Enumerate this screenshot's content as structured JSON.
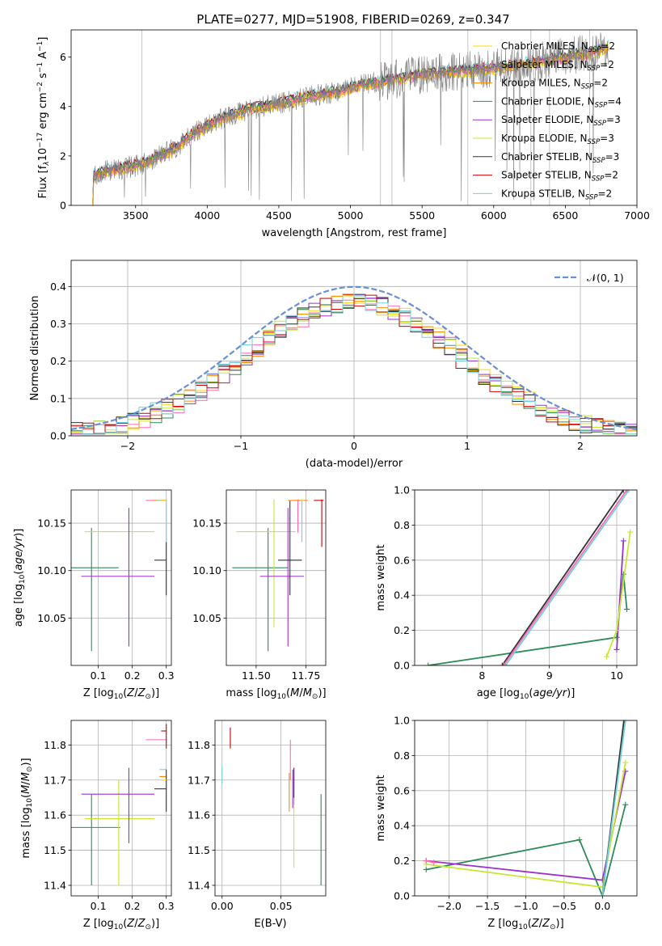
{
  "figure": {
    "title": "PLATE=0277, MJD=51908, FIBERID=0269, z=0.347"
  },
  "models": [
    {
      "key": "cm",
      "label": "Chabrier MILES, N",
      "n": "=2",
      "color": "#FFD700"
    },
    {
      "key": "sm",
      "label": "Salpeter MILES, N",
      "n": "=2",
      "color": "#FF69B4"
    },
    {
      "key": "km",
      "label": "Kroupa MILES, N",
      "n": "=2",
      "color": "#FF8C00"
    },
    {
      "key": "ce",
      "label": "Chabrier ELODIE, N",
      "n": "=4",
      "color": "#2E8B57"
    },
    {
      "key": "se",
      "label": "Salpeter ELODIE, N",
      "n": "=3",
      "color": "#9932CC"
    },
    {
      "key": "ke",
      "label": "Kroupa ELODIE, N",
      "n": "=3",
      "color": "#C8E632"
    },
    {
      "key": "cs",
      "label": "Chabrier STELIB, N",
      "n": "=3",
      "color": "#333333"
    },
    {
      "key": "ss",
      "label": "Salpeter STELIB, N",
      "n": "=2",
      "color": "#CC0000"
    },
    {
      "key": "ks",
      "label": "Kroupa STELIB, N",
      "n": "=2",
      "color": "#6FD0E0"
    }
  ],
  "legend_sub": "SSP",
  "norm_legend": "𝒩(0, 1)",
  "chart_data": [
    {
      "id": "spectrum",
      "type": "line",
      "title": "PLATE=0277, MJD=51908, FIBERID=0269, z=0.347",
      "xlabel": "wavelength [Angstrom, rest frame]",
      "ylabel_parts": [
        "Flux [f",
        "λ",
        "10",
        "−17",
        " erg cm",
        "−2",
        " s",
        "−1",
        " A",
        "−1",
        "]"
      ],
      "xlim": [
        3050,
        7000
      ],
      "ylim": [
        0,
        7.1
      ],
      "xticks": [
        3500,
        4000,
        4500,
        5000,
        5500,
        6000,
        6500,
        7000
      ],
      "yticks": [
        0,
        2,
        4,
        6
      ],
      "continuum": [
        [
          3200,
          0.0
        ],
        [
          3205,
          1.2
        ],
        [
          3300,
          1.4
        ],
        [
          3400,
          1.5
        ],
        [
          3500,
          1.6
        ],
        [
          3600,
          1.8
        ],
        [
          3700,
          2.1
        ],
        [
          3800,
          2.4
        ],
        [
          3900,
          2.9
        ],
        [
          4000,
          3.2
        ],
        [
          4100,
          3.5
        ],
        [
          4200,
          3.7
        ],
        [
          4300,
          3.9
        ],
        [
          4500,
          4.1
        ],
        [
          4700,
          4.4
        ],
        [
          4900,
          4.6
        ],
        [
          5100,
          4.9
        ],
        [
          5300,
          5.1
        ],
        [
          5500,
          5.3
        ],
        [
          5700,
          5.4
        ],
        [
          5900,
          5.5
        ],
        [
          6100,
          5.6
        ],
        [
          6300,
          5.8
        ],
        [
          6500,
          6.0
        ],
        [
          6700,
          6.2
        ],
        [
          6800,
          6.4
        ]
      ]
    },
    {
      "id": "residuals",
      "type": "line",
      "xlabel": "(data-model)/error",
      "ylabel": "Normed distribution",
      "xlim": [
        -2.5,
        2.5
      ],
      "ylim": [
        0,
        0.47
      ],
      "xticks": [
        -2,
        -1,
        0,
        1,
        2
      ],
      "yticks": [
        0.0,
        0.1,
        0.2,
        0.3,
        0.4
      ],
      "bin_width": 0.1,
      "series_name": "𝒩(0, 1)"
    },
    {
      "id": "age-Z",
      "type": "scatter",
      "xlabel": "Z [log",
      "ylabel": "age  [log",
      "xlim": [
        0.02,
        0.315
      ],
      "ylim": [
        10.0,
        10.185
      ],
      "xticks": [
        0.1,
        0.2,
        0.3
      ],
      "yticks": [
        10.05,
        10.1,
        10.15
      ],
      "points": [
        {
          "m": "ce",
          "x": 0.08,
          "y": 10.103,
          "xl": 0.0,
          "xh": 0.16,
          "yl": 10.015,
          "yh": 10.145
        },
        {
          "m": "ke",
          "x": 0.16,
          "y": 10.141,
          "xl": 0.06,
          "xh": 0.265,
          "yl": 10.141,
          "yh": 10.141
        },
        {
          "m": "se",
          "x": 0.19,
          "y": 10.094,
          "xl": 0.05,
          "xh": 0.265,
          "yl": 10.02,
          "yh": 10.166
        },
        {
          "m": "sm",
          "x": 0.27,
          "y": 10.174,
          "xl": 0.24,
          "xh": 0.3,
          "yl": 10.174,
          "yh": 10.174
        },
        {
          "m": "km",
          "x": 0.29,
          "y": 10.174,
          "xl": 0.26,
          "xh": 0.3,
          "yl": 10.174,
          "yh": 10.174
        },
        {
          "m": "ss",
          "x": 0.3,
          "y": 10.174,
          "xl": 0.28,
          "xh": 0.3,
          "yl": 10.174,
          "yh": 10.174
        },
        {
          "m": "ks",
          "x": 0.3,
          "y": 10.174,
          "xl": 0.27,
          "xh": 0.3,
          "yl": 10.13,
          "yh": 10.175
        },
        {
          "m": "cs",
          "x": 0.3,
          "y": 10.111,
          "xl": 0.265,
          "xh": 0.3,
          "yl": 10.074,
          "yh": 10.13
        },
        {
          "m": "cm",
          "x": 0.3,
          "y": 10.174,
          "xl": 0.28,
          "xh": 0.3,
          "yl": 10.174,
          "yh": 10.174
        }
      ]
    },
    {
      "id": "age-mass",
      "type": "scatter",
      "xlabel": "mass [log",
      "ylabel": "",
      "xlim": [
        11.35,
        11.85
      ],
      "ylim": [
        10.0,
        10.185
      ],
      "xticks": [
        11.5,
        11.75
      ],
      "yticks": [
        10.05,
        10.1,
        10.15
      ],
      "points": [
        {
          "m": "ce",
          "x": 11.56,
          "y": 10.103,
          "xl": 11.38,
          "xh": 11.66,
          "yl": 10.015,
          "yh": 10.145
        },
        {
          "m": "ke",
          "x": 11.59,
          "y": 10.141,
          "xl": 11.4,
          "xh": 11.7,
          "yl": 10.04,
          "yh": 10.175
        },
        {
          "m": "se",
          "x": 11.66,
          "y": 10.094,
          "xl": 11.52,
          "xh": 11.74,
          "yl": 10.02,
          "yh": 10.166
        },
        {
          "m": "cs",
          "x": 11.67,
          "y": 10.111,
          "xl": 11.61,
          "xh": 11.73,
          "yl": 10.074,
          "yh": 10.174
        },
        {
          "m": "sm",
          "x": 11.71,
          "y": 10.174,
          "xl": 11.7,
          "xh": 11.72,
          "yl": 10.14,
          "yh": 10.175
        },
        {
          "m": "ks",
          "x": 11.73,
          "y": 10.174,
          "xl": 11.72,
          "xh": 11.74,
          "yl": 10.13,
          "yh": 10.175
        },
        {
          "m": "km",
          "x": 11.73,
          "y": 10.174,
          "xl": 11.66,
          "xh": 11.76,
          "yl": 10.174,
          "yh": 10.174
        },
        {
          "m": "ss",
          "x": 11.83,
          "y": 10.174,
          "xl": 11.79,
          "xh": 11.84,
          "yl": 10.125,
          "yh": 10.175
        },
        {
          "m": "cm",
          "x": 11.73,
          "y": 10.174,
          "xl": 11.72,
          "xh": 11.74,
          "yl": 10.174,
          "yh": 10.174
        }
      ]
    },
    {
      "id": "weight-age",
      "type": "line",
      "xlabel": "age  [log",
      "ylabel": "mass weight",
      "xlim": [
        7.0,
        10.3
      ],
      "ylim": [
        0,
        1.0
      ],
      "xticks": [
        8,
        9,
        10
      ],
      "yticks": [
        0.0,
        0.2,
        0.4,
        0.6,
        0.8,
        1.0
      ],
      "series": [
        {
          "m": "ce",
          "points": [
            [
              7.2,
              0.0
            ],
            [
              10.0,
              0.16
            ],
            [
              10.1,
              0.52
            ],
            [
              10.15,
              0.32
            ]
          ]
        },
        {
          "m": "cs",
          "points": [
            [
              8.3,
              0.0
            ],
            [
              10.1,
              1.0
            ]
          ]
        },
        {
          "m": "ks",
          "points": [
            [
              8.35,
              0.0
            ],
            [
              10.18,
              1.0
            ]
          ]
        },
        {
          "m": "se",
          "points": [
            [
              10.0,
              0.09
            ],
            [
              10.1,
              0.71
            ]
          ]
        },
        {
          "m": "ke",
          "points": [
            [
              9.85,
              0.05
            ],
            [
              10.0,
              0.2
            ],
            [
              10.2,
              0.76
            ]
          ]
        },
        {
          "m": "sm",
          "points": [
            [
              8.32,
              0.0
            ],
            [
              10.15,
              1.0
            ]
          ]
        }
      ]
    },
    {
      "id": "mass-Z",
      "type": "scatter",
      "xlabel": "Z [log",
      "ylabel": "mass [log",
      "xlim": [
        0.02,
        0.315
      ],
      "ylim": [
        11.37,
        11.87
      ],
      "xticks": [
        0.1,
        0.2,
        0.3
      ],
      "yticks": [
        11.4,
        11.5,
        11.6,
        11.7,
        11.8
      ],
      "points": [
        {
          "m": "ce",
          "x": 0.08,
          "y": 11.565,
          "xl": 0.0,
          "xh": 0.165,
          "yl": 11.4,
          "yh": 11.66
        },
        {
          "m": "ke",
          "x": 0.16,
          "y": 11.59,
          "xl": 0.06,
          "xh": 0.265,
          "yl": 11.4,
          "yh": 11.7
        },
        {
          "m": "se",
          "x": 0.19,
          "y": 11.66,
          "xl": 0.05,
          "xh": 0.265,
          "yl": 11.52,
          "yh": 11.735
        },
        {
          "m": "sm",
          "x": 0.27,
          "y": 11.815,
          "xl": 0.24,
          "xh": 0.3,
          "yl": 11.815,
          "yh": 11.815
        },
        {
          "m": "ss",
          "x": 0.3,
          "y": 11.84,
          "xl": 0.285,
          "xh": 0.3,
          "yl": 11.79,
          "yh": 11.86
        },
        {
          "m": "ks",
          "x": 0.3,
          "y": 11.73,
          "xl": 0.28,
          "xh": 0.3,
          "yl": 11.73,
          "yh": 11.73
        },
        {
          "m": "km",
          "x": 0.3,
          "y": 11.71,
          "xl": 0.28,
          "xh": 0.3,
          "yl": 11.71,
          "yh": 11.71
        },
        {
          "m": "cs",
          "x": 0.3,
          "y": 11.675,
          "xl": 0.265,
          "xh": 0.3,
          "yl": 11.61,
          "yh": 11.73
        },
        {
          "m": "cm",
          "x": 0.3,
          "y": 11.7,
          "xl": 0.29,
          "xh": 0.3,
          "yl": 11.7,
          "yh": 11.7
        }
      ]
    },
    {
      "id": "mass-ebv",
      "type": "scatter",
      "xlabel": "E(B-V)",
      "ylabel": "",
      "xlim": [
        -0.006,
        0.088
      ],
      "ylim": [
        11.37,
        11.87
      ],
      "xticks": [
        0.0,
        0.05
      ],
      "yticks": [
        11.4,
        11.5,
        11.6,
        11.7,
        11.8
      ],
      "points": [
        {
          "m": "ss",
          "x": 0.007,
          "y": 11.82,
          "xl": 0.007,
          "xh": 0.007,
          "yl": 11.79,
          "yh": 11.85
        },
        {
          "m": "ks",
          "x": 0.0,
          "y": 11.73,
          "xl": 0.0,
          "xh": 0.0,
          "yl": 11.69,
          "yh": 11.74
        },
        {
          "m": "sm",
          "x": 0.058,
          "y": 11.76,
          "xl": 0.058,
          "xh": 0.058,
          "yl": 11.7,
          "yh": 11.815
        },
        {
          "m": "km",
          "x": 0.057,
          "y": 11.66,
          "xl": 0.057,
          "xh": 0.057,
          "yl": 11.61,
          "yh": 11.72
        },
        {
          "m": "cs",
          "x": 0.061,
          "y": 11.68,
          "xl": 0.061,
          "xh": 0.061,
          "yl": 11.63,
          "yh": 11.735
        },
        {
          "m": "ke",
          "x": 0.061,
          "y": 11.55,
          "xl": 0.061,
          "xh": 0.061,
          "yl": 11.45,
          "yh": 11.65
        },
        {
          "m": "se",
          "x": 0.06,
          "y": 11.68,
          "xl": 0.06,
          "xh": 0.06,
          "yl": 11.62,
          "yh": 11.73
        },
        {
          "m": "ce",
          "x": 0.084,
          "y": 11.53,
          "xl": 0.084,
          "xh": 0.084,
          "yl": 11.4,
          "yh": 11.66
        }
      ]
    },
    {
      "id": "weight-Z",
      "type": "line",
      "xlabel": "Z [log",
      "ylabel": "mass weight",
      "xlim": [
        -2.45,
        0.45
      ],
      "ylim": [
        0,
        1.0
      ],
      "xticks": [
        -2.0,
        -1.5,
        -1.0,
        -0.5,
        0.0
      ],
      "yticks": [
        0.0,
        0.2,
        0.4,
        0.6,
        0.8,
        1.0
      ],
      "series": [
        {
          "m": "ce",
          "points": [
            [
              -2.3,
              0.15
            ],
            [
              -0.3,
              0.32
            ],
            [
              0.0,
              0.0
            ],
            [
              0.3,
              0.52
            ]
          ]
        },
        {
          "m": "se",
          "points": [
            [
              -2.3,
              0.2
            ],
            [
              0.0,
              0.09
            ],
            [
              0.3,
              0.71
            ]
          ]
        },
        {
          "m": "ke",
          "points": [
            [
              -2.3,
              0.18
            ],
            [
              0.0,
              0.05
            ],
            [
              0.3,
              0.76
            ]
          ]
        },
        {
          "m": "cs",
          "points": [
            [
              0.0,
              0.0
            ],
            [
              0.28,
              1.0
            ]
          ]
        },
        {
          "m": "ks",
          "points": [
            [
              0.0,
              0.0
            ],
            [
              0.3,
              1.0
            ]
          ]
        },
        {
          "m": "sm",
          "points": [
            [
              -2.3,
              0.2
            ],
            [
              -2.2,
              0.19
            ]
          ]
        }
      ]
    }
  ]
}
